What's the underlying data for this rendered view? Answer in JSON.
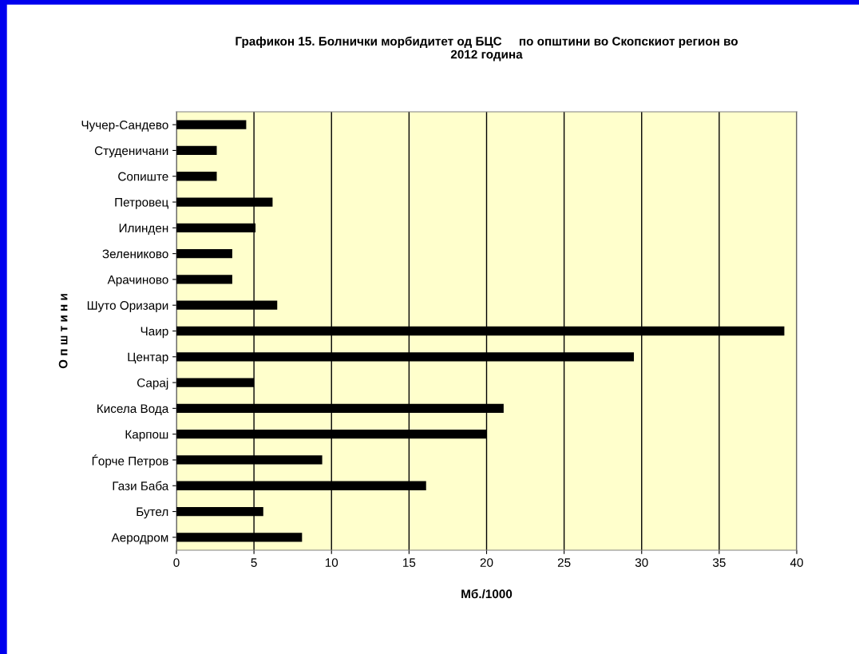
{
  "chart_data": {
    "type": "bar",
    "orientation": "horizontal",
    "title": "Графикон 15. Болнички морбидитет од БЦС     по општини во Скопскиот регион во\n2012 година",
    "xlabel": "Мб./1000",
    "ylabel": "О п ш т и н и",
    "categories": [
      "Чучер-Сандево",
      "Студеничани",
      "Сопиште",
      "Петровец",
      "Илинден",
      "Зелениково",
      "Арачиново",
      "Шуто Оризари",
      "Чаир",
      "Центар",
      "Сарај",
      "Кисела Вода",
      "Карпош",
      "Ѓорче Петров",
      "Гази Баба",
      "Бутел",
      "Аеродром"
    ],
    "values": [
      4.5,
      2.6,
      2.6,
      6.2,
      5.1,
      3.6,
      3.6,
      6.5,
      39.2,
      29.5,
      5.0,
      21.1,
      20.0,
      9.4,
      16.1,
      5.6,
      8.1
    ],
    "color": "#000000",
    "xlim": [
      0,
      40
    ],
    "xticks": [
      0,
      5,
      10,
      15,
      20,
      25,
      30,
      35,
      40
    ],
    "grid": "x",
    "legend": false
  }
}
